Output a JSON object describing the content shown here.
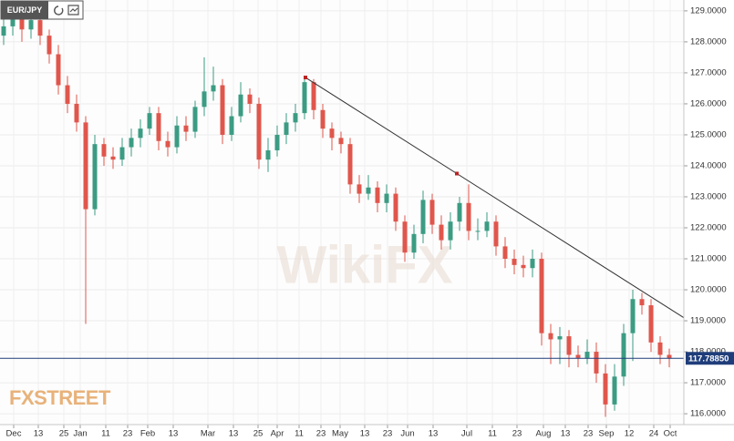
{
  "chart_data": {
    "type": "candlestick",
    "symbol": "EUR/JPY",
    "watermark": "FXSTREET",
    "watermark2": "WikiFX",
    "up_color": "#3b9c83",
    "down_color": "#e0564c",
    "grid": true,
    "open": [
      128.2,
      128.5,
      128.8,
      128.4,
      128.7,
      128.2,
      127.6,
      126.6,
      126.0,
      125.4,
      122.6,
      124.7,
      124.3,
      124.2,
      124.6,
      124.9,
      125.2,
      125.7,
      124.8,
      124.6,
      125.3,
      125.1,
      125.9,
      126.4,
      126.6,
      125.0,
      125.6,
      126.3,
      126.0,
      124.2,
      124.5,
      125.0,
      125.4,
      125.7,
      126.7,
      125.8,
      125.2,
      124.9,
      124.7,
      123.4,
      123.1,
      123.3,
      122.8,
      123.1,
      122.2,
      121.2,
      121.8,
      122.9,
      122.1,
      121.6,
      122.2,
      122.8,
      121.9,
      121.9,
      122.2,
      121.4,
      121.0,
      120.8,
      120.7,
      121.0,
      118.6,
      118.4,
      118.5,
      117.9,
      117.8,
      118.0,
      117.3,
      116.3,
      117.2,
      118.6,
      119.7,
      119.5,
      118.3,
      117.9
    ],
    "high": [
      128.8,
      129.0,
      129.0,
      128.9,
      128.9,
      128.4,
      127.9,
      126.9,
      126.3,
      125.6,
      125.0,
      124.9,
      124.6,
      124.9,
      125.2,
      125.5,
      125.9,
      125.9,
      125.1,
      125.6,
      125.6,
      126.1,
      127.5,
      127.2,
      126.8,
      125.9,
      126.7,
      126.5,
      126.2,
      124.9,
      125.3,
      125.7,
      126.0,
      126.9,
      126.8,
      126.0,
      125.4,
      125.1,
      124.9,
      123.7,
      123.7,
      123.5,
      123.4,
      123.3,
      122.4,
      122.1,
      123.2,
      123.1,
      122.4,
      122.5,
      123.0,
      123.4,
      122.3,
      122.5,
      122.4,
      121.7,
      121.3,
      121.1,
      121.3,
      121.2,
      118.9,
      118.8,
      118.7,
      118.2,
      118.4,
      118.3,
      117.6,
      117.6,
      118.9,
      120.0,
      119.9,
      119.7,
      118.5,
      118.1
    ],
    "low": [
      127.9,
      128.2,
      128.0,
      128.1,
      127.9,
      127.3,
      126.3,
      125.7,
      125.1,
      118.9,
      122.4,
      124.0,
      123.9,
      124.0,
      124.3,
      124.6,
      125.0,
      124.5,
      124.3,
      124.4,
      124.8,
      124.9,
      125.6,
      126.1,
      124.7,
      124.8,
      125.4,
      125.7,
      123.9,
      123.8,
      124.3,
      124.7,
      125.1,
      125.5,
      125.5,
      124.9,
      124.5,
      124.4,
      123.1,
      122.8,
      122.9,
      122.5,
      122.5,
      121.9,
      120.9,
      121.0,
      121.5,
      121.8,
      121.3,
      121.3,
      121.9,
      121.6,
      121.6,
      121.7,
      121.1,
      120.7,
      120.5,
      120.4,
      120.4,
      118.2,
      117.6,
      117.6,
      117.5,
      117.5,
      117.6,
      117.0,
      115.9,
      116.1,
      116.9,
      117.7,
      119.2,
      118.0,
      117.6,
      117.5
    ],
    "close": [
      128.5,
      128.8,
      128.4,
      128.7,
      128.2,
      127.6,
      126.6,
      126.0,
      125.4,
      122.6,
      124.7,
      124.3,
      124.2,
      124.6,
      124.9,
      125.2,
      125.7,
      124.8,
      124.6,
      125.3,
      125.1,
      125.9,
      126.4,
      126.6,
      125.0,
      125.6,
      126.3,
      126.0,
      124.2,
      124.5,
      125.0,
      125.4,
      125.7,
      126.7,
      125.8,
      125.2,
      124.9,
      124.7,
      123.4,
      123.1,
      123.3,
      122.8,
      123.1,
      122.2,
      121.2,
      121.8,
      122.9,
      122.1,
      121.6,
      122.2,
      122.8,
      121.9,
      121.9,
      122.2,
      121.4,
      121.0,
      120.8,
      120.7,
      121.0,
      118.6,
      118.4,
      118.5,
      117.9,
      117.8,
      118.0,
      117.3,
      116.3,
      117.2,
      118.6,
      119.7,
      119.5,
      118.3,
      117.9,
      117.79
    ],
    "trendline": {
      "x": [
        33.1,
        49.7
      ],
      "y": [
        126.85,
        123.75
      ],
      "color": "#333333"
    },
    "last_price": {
      "value": 117.7885,
      "label": "117.78850",
      "color": "#1f3d7a"
    },
    "xlim": [
      -0.4,
      74.6
    ],
    "ylim": [
      115.65,
      129.35
    ],
    "xticks": [
      {
        "value": 1.1,
        "label": "Dec"
      },
      {
        "value": 3.8,
        "label": "13"
      },
      {
        "value": 6.6,
        "label": "25"
      },
      {
        "value": 8.4,
        "label": "Jan"
      },
      {
        "value": 11.2,
        "label": "11"
      },
      {
        "value": 13.6,
        "label": "23"
      },
      {
        "value": 15.8,
        "label": "Feb"
      },
      {
        "value": 18.6,
        "label": "13"
      },
      {
        "value": 22.4,
        "label": "Mar"
      },
      {
        "value": 25.2,
        "label": "13"
      },
      {
        "value": 27.9,
        "label": "25"
      },
      {
        "value": 30.0,
        "label": "Apr"
      },
      {
        "value": 32.4,
        "label": "11"
      },
      {
        "value": 34.8,
        "label": "23"
      },
      {
        "value": 36.9,
        "label": "May"
      },
      {
        "value": 39.6,
        "label": "13"
      },
      {
        "value": 42.1,
        "label": "23"
      },
      {
        "value": 44.3,
        "label": "Jun"
      },
      {
        "value": 47.1,
        "label": "13"
      },
      {
        "value": 50.8,
        "label": "Jul"
      },
      {
        "value": 53.6,
        "label": "11"
      },
      {
        "value": 56.3,
        "label": "23"
      },
      {
        "value": 59.2,
        "label": "Aug"
      },
      {
        "value": 61.6,
        "label": "13"
      },
      {
        "value": 64.1,
        "label": "23"
      },
      {
        "value": 66.1,
        "label": "Sep"
      },
      {
        "value": 68.6,
        "label": "12"
      },
      {
        "value": 71.3,
        "label": "24"
      },
      {
        "value": 73.1,
        "label": "Oct"
      }
    ],
    "yticks": [
      {
        "value": 116,
        "label": "116.0000"
      },
      {
        "value": 117,
        "label": "117.0000"
      },
      {
        "value": 118,
        "label": "118.0000"
      },
      {
        "value": 119,
        "label": "119.0000"
      },
      {
        "value": 120,
        "label": "120.0000"
      },
      {
        "value": 121,
        "label": "121.0000"
      },
      {
        "value": 122,
        "label": "122.0000"
      },
      {
        "value": 123,
        "label": "123.0000"
      },
      {
        "value": 124,
        "label": "124.0000"
      },
      {
        "value": 125,
        "label": "125.0000"
      },
      {
        "value": 126,
        "label": "126.0000"
      },
      {
        "value": 127,
        "label": "127.0000"
      },
      {
        "value": 128,
        "label": "128.0000"
      },
      {
        "value": 129,
        "label": "129.0000"
      }
    ]
  }
}
